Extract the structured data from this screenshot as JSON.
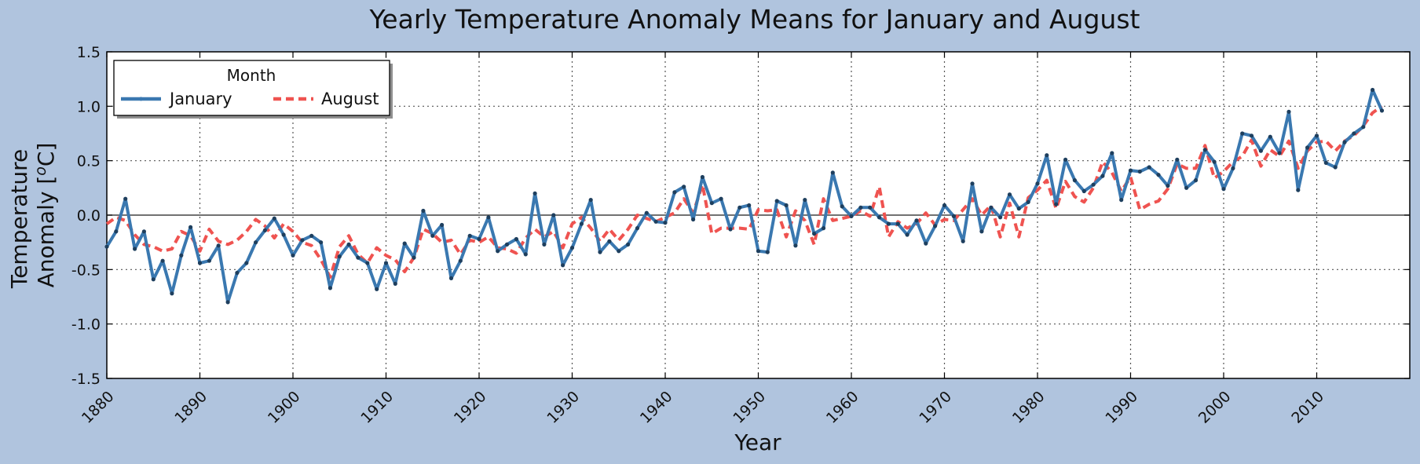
{
  "chart_data": {
    "type": "line",
    "title": "Yearly Temperature Anomaly Means for January and August",
    "xlabel": "Year",
    "ylabel_line1": "Temperature",
    "ylabel_line2": "Anomaly [",
    "ylabel_sup": "o",
    "ylabel_end": "C]",
    "xlim": [
      1880,
      2020
    ],
    "ylim": [
      -1.5,
      1.5
    ],
    "xticks": [
      1880,
      1890,
      1900,
      1910,
      1920,
      1930,
      1940,
      1950,
      1960,
      1970,
      1980,
      1990,
      2000,
      2010
    ],
    "yticks": [
      -1.5,
      -1.0,
      -0.5,
      0.0,
      0.5,
      1.0,
      1.5
    ],
    "ytick_labels": [
      "-1.5",
      "-1.0",
      "-0.5",
      "0.0",
      "0.5",
      "1.0",
      "1.5"
    ],
    "grid": true,
    "zero_line": true,
    "legend": {
      "title": "Month",
      "placement": "upper-left",
      "columns": 2
    },
    "colors": {
      "background": "#b0c4de",
      "axes": "#ffffff",
      "january": "#3a78b0",
      "august": "#ef5350"
    },
    "x": [
      1880,
      1881,
      1882,
      1883,
      1884,
      1885,
      1886,
      1887,
      1888,
      1889,
      1890,
      1891,
      1892,
      1893,
      1894,
      1895,
      1896,
      1897,
      1898,
      1899,
      1900,
      1901,
      1902,
      1903,
      1904,
      1905,
      1906,
      1907,
      1908,
      1909,
      1910,
      1911,
      1912,
      1913,
      1914,
      1915,
      1916,
      1917,
      1918,
      1919,
      1920,
      1921,
      1922,
      1923,
      1924,
      1925,
      1926,
      1927,
      1928,
      1929,
      1930,
      1931,
      1932,
      1933,
      1934,
      1935,
      1936,
      1937,
      1938,
      1939,
      1940,
      1941,
      1942,
      1943,
      1944,
      1945,
      1946,
      1947,
      1948,
      1949,
      1950,
      1951,
      1952,
      1953,
      1954,
      1955,
      1956,
      1957,
      1958,
      1959,
      1960,
      1961,
      1962,
      1963,
      1964,
      1965,
      1966,
      1967,
      1968,
      1969,
      1970,
      1971,
      1972,
      1973,
      1974,
      1975,
      1976,
      1977,
      1978,
      1979,
      1980,
      1981,
      1982,
      1983,
      1984,
      1985,
      1986,
      1987,
      1988,
      1989,
      1990,
      1991,
      1992,
      1993,
      1994,
      1995,
      1996,
      1997,
      1998,
      1999,
      2000,
      2001,
      2002,
      2003,
      2004,
      2005,
      2006,
      2007,
      2008,
      2009,
      2010,
      2011,
      2012,
      2013,
      2014,
      2015,
      2016,
      2017
    ],
    "series": [
      {
        "name": "January",
        "style": "solid",
        "values": [
          -0.29,
          -0.15,
          0.15,
          -0.31,
          -0.15,
          -0.59,
          -0.42,
          -0.72,
          -0.37,
          -0.11,
          -0.44,
          -0.42,
          -0.28,
          -0.8,
          -0.53,
          -0.44,
          -0.25,
          -0.14,
          -0.03,
          -0.18,
          -0.37,
          -0.23,
          -0.19,
          -0.25,
          -0.67,
          -0.38,
          -0.27,
          -0.39,
          -0.44,
          -0.68,
          -0.44,
          -0.63,
          -0.26,
          -0.39,
          0.04,
          -0.19,
          -0.09,
          -0.58,
          -0.42,
          -0.19,
          -0.22,
          -0.02,
          -0.33,
          -0.27,
          -0.22,
          -0.36,
          0.2,
          -0.27,
          0.0,
          -0.46,
          -0.3,
          -0.08,
          0.14,
          -0.34,
          -0.24,
          -0.33,
          -0.27,
          -0.12,
          0.02,
          -0.06,
          -0.07,
          0.21,
          0.26,
          -0.04,
          0.35,
          0.11,
          0.15,
          -0.13,
          0.07,
          0.09,
          -0.33,
          -0.34,
          0.13,
          0.09,
          -0.28,
          0.14,
          -0.17,
          -0.12,
          0.39,
          0.08,
          -0.01,
          0.07,
          0.07,
          -0.02,
          -0.08,
          -0.08,
          -0.18,
          -0.05,
          -0.26,
          -0.1,
          0.09,
          -0.01,
          -0.24,
          0.29,
          -0.15,
          0.07,
          -0.02,
          0.19,
          0.06,
          0.12,
          0.29,
          0.55,
          0.1,
          0.51,
          0.32,
          0.22,
          0.28,
          0.36,
          0.57,
          0.14,
          0.41,
          0.4,
          0.44,
          0.37,
          0.27,
          0.51,
          0.25,
          0.32,
          0.6,
          0.49,
          0.24,
          0.43,
          0.75,
          0.73,
          0.59,
          0.72,
          0.57,
          0.95,
          0.23,
          0.62,
          0.73,
          0.48,
          0.44,
          0.67,
          0.75,
          0.81,
          1.15,
          0.96
        ]
      },
      {
        "name": "August",
        "style": "dashed",
        "values": [
          -0.08,
          -0.02,
          -0.05,
          -0.18,
          -0.27,
          -0.29,
          -0.33,
          -0.31,
          -0.15,
          -0.19,
          -0.33,
          -0.13,
          -0.24,
          -0.27,
          -0.23,
          -0.15,
          -0.04,
          -0.1,
          -0.21,
          -0.08,
          -0.15,
          -0.25,
          -0.28,
          -0.41,
          -0.57,
          -0.29,
          -0.19,
          -0.36,
          -0.44,
          -0.3,
          -0.37,
          -0.41,
          -0.52,
          -0.39,
          -0.13,
          -0.17,
          -0.25,
          -0.23,
          -0.36,
          -0.23,
          -0.25,
          -0.2,
          -0.3,
          -0.31,
          -0.35,
          -0.21,
          -0.13,
          -0.2,
          -0.15,
          -0.3,
          -0.08,
          -0.02,
          -0.12,
          -0.24,
          -0.13,
          -0.23,
          -0.13,
          0.0,
          -0.03,
          -0.06,
          -0.02,
          0.02,
          0.15,
          0.02,
          0.28,
          -0.17,
          -0.12,
          -0.12,
          -0.12,
          -0.13,
          0.05,
          0.04,
          0.05,
          -0.2,
          0.04,
          -0.05,
          -0.27,
          0.15,
          -0.05,
          -0.03,
          -0.01,
          0.04,
          -0.01,
          0.26,
          -0.2,
          -0.06,
          -0.12,
          -0.08,
          0.02,
          -0.09,
          -0.04,
          -0.05,
          0.05,
          0.15,
          0.0,
          0.09,
          -0.2,
          0.11,
          -0.2,
          0.16,
          0.23,
          0.32,
          0.06,
          0.31,
          0.17,
          0.12,
          0.25,
          0.49,
          0.39,
          0.22,
          0.35,
          0.05,
          0.1,
          0.13,
          0.24,
          0.47,
          0.43,
          0.43,
          0.64,
          0.34,
          0.4,
          0.49,
          0.54,
          0.69,
          0.45,
          0.6,
          0.54,
          0.68,
          0.43,
          0.59,
          0.67,
          0.68,
          0.59,
          0.68,
          0.73,
          0.82,
          0.94,
          1.0
        ]
      }
    ]
  }
}
